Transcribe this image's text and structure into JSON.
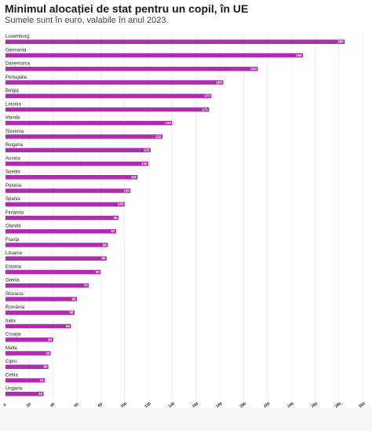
{
  "title": "Minimul alocației de stat pentru un copil, în UE",
  "subtitle": "Sumele sunt în euro, valabile în anul 2023.",
  "colors": {
    "bar": "#b02bb0",
    "text": "#1a1a1a"
  },
  "chart_data": {
    "type": "bar",
    "orientation": "horizontal",
    "title": "Minimul alocației de stat pentru un copil, în UE",
    "subtitle": "Sumele sunt în euro, valabile în anul 2023.",
    "categories": [
      "Luxemburg",
      "Germania",
      "Danemarca",
      "Portugalia",
      "Belgia",
      "Letonia",
      "Irlanda",
      "Slovenia",
      "Bulgaria",
      "Austria",
      "Suedia",
      "Polonia",
      "Spania",
      "Finlanda",
      "Olanda",
      "Franța",
      "Lituania",
      "Estonia",
      "Grecia",
      "Slovacia",
      "România",
      "Italia",
      "Croația",
      "Malta",
      "Cipru",
      "Cehia",
      "Ungaria"
    ],
    "values": [
      285,
      250,
      212,
      183,
      173,
      171,
      140,
      132,
      122,
      120,
      111,
      105,
      100,
      95,
      93,
      86,
      85,
      80,
      70,
      60,
      58,
      55,
      40,
      38,
      36,
      33,
      32
    ],
    "value_labels": [
      "285",
      "250",
      "212",
      "183",
      "173",
      "171",
      "140",
      "132",
      "122",
      "120",
      "111",
      "105",
      "100",
      "95",
      "93",
      "86",
      "85",
      "80",
      "70",
      "60",
      "58",
      "55",
      "40",
      "38",
      "36",
      "33",
      "32"
    ],
    "xlim": [
      0,
      300
    ],
    "xticks": [
      "0",
      "20",
      "40",
      "60",
      "80",
      "100",
      "120",
      "140",
      "160",
      "180",
      "200",
      "220",
      "240",
      "260",
      "280",
      "300"
    ],
    "grid": true,
    "legend": "none"
  }
}
